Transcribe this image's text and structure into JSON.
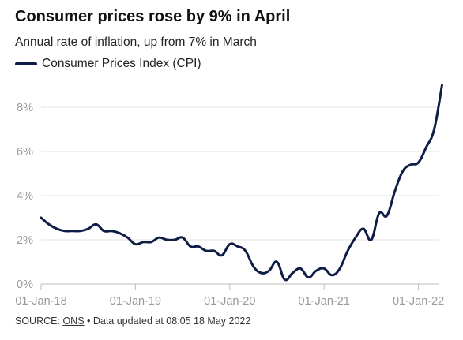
{
  "header": {
    "title": "Consumer prices rose by 9% in April",
    "subtitle": "Annual rate of inflation, up from 7% in March"
  },
  "footer": {
    "source_prefix": "SOURCE: ",
    "source_link": "ONS",
    "updated": " • Data updated at 08:05 18 May 2022"
  },
  "colors": {
    "series": "#0f1c45",
    "grid": "#e3e3e3",
    "axis": "#bdbdbd",
    "tick_text": "#999999"
  },
  "chart_data": {
    "type": "line",
    "title": "Consumer prices rose by 9% in April",
    "subtitle": "Annual rate of inflation, up from 7% in March",
    "xlabel": "",
    "ylabel": "",
    "x_ticks": [
      "01-Jan-18",
      "01-Jan-19",
      "01-Jan-20",
      "01-Jan-21",
      "01-Jan-22"
    ],
    "y_ticks": [
      "0%",
      "2%",
      "4%",
      "6%",
      "8%"
    ],
    "y_tick_values": [
      0,
      2,
      4,
      6,
      8
    ],
    "ylim": [
      0,
      9
    ],
    "xlim": [
      "2018-01",
      "2022-04"
    ],
    "grid": true,
    "legend_position": "top-left",
    "series": [
      {
        "name": "Consumer Prices Index (CPI)",
        "x": [
          "2018-01",
          "2018-02",
          "2018-03",
          "2018-04",
          "2018-05",
          "2018-06",
          "2018-07",
          "2018-08",
          "2018-09",
          "2018-10",
          "2018-11",
          "2018-12",
          "2019-01",
          "2019-02",
          "2019-03",
          "2019-04",
          "2019-05",
          "2019-06",
          "2019-07",
          "2019-08",
          "2019-09",
          "2019-10",
          "2019-11",
          "2019-12",
          "2020-01",
          "2020-02",
          "2020-03",
          "2020-04",
          "2020-05",
          "2020-06",
          "2020-07",
          "2020-08",
          "2020-09",
          "2020-10",
          "2020-11",
          "2020-12",
          "2021-01",
          "2021-02",
          "2021-03",
          "2021-04",
          "2021-05",
          "2021-06",
          "2021-07",
          "2021-08",
          "2021-09",
          "2021-10",
          "2021-11",
          "2021-12",
          "2022-01",
          "2022-02",
          "2022-03",
          "2022-04"
        ],
        "values": [
          3.0,
          2.7,
          2.5,
          2.4,
          2.4,
          2.4,
          2.5,
          2.7,
          2.4,
          2.4,
          2.3,
          2.1,
          1.8,
          1.9,
          1.9,
          2.1,
          2.0,
          2.0,
          2.1,
          1.7,
          1.7,
          1.5,
          1.5,
          1.3,
          1.8,
          1.7,
          1.5,
          0.8,
          0.5,
          0.6,
          1.0,
          0.2,
          0.5,
          0.7,
          0.3,
          0.6,
          0.7,
          0.4,
          0.7,
          1.5,
          2.1,
          2.5,
          2.0,
          3.2,
          3.1,
          4.2,
          5.1,
          5.4,
          5.5,
          6.2,
          7.0,
          9.0
        ]
      }
    ]
  }
}
